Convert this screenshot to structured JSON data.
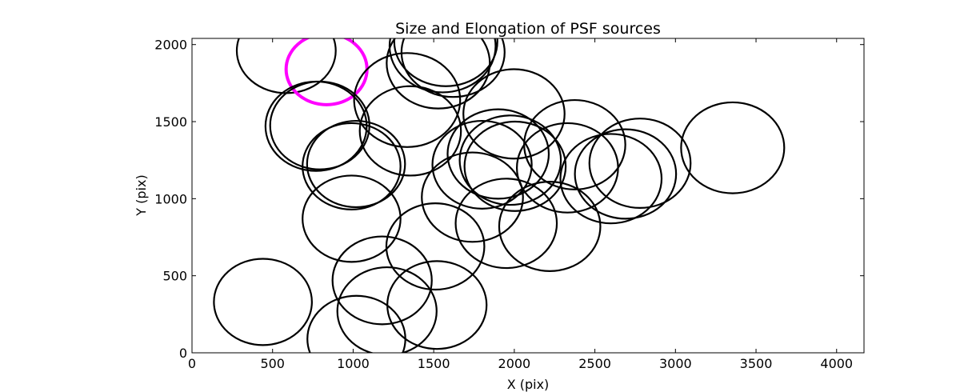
{
  "chart_data": {
    "type": "scatter",
    "title": "Size and Elongation of PSF sources",
    "xlabel": "X (pix)",
    "ylabel": "Y (pix)",
    "xlim": [
      0,
      4170
    ],
    "ylim": [
      0,
      2040
    ],
    "xticks": [
      0,
      500,
      1000,
      1500,
      2000,
      2500,
      3000,
      3500,
      4000
    ],
    "yticks": [
      0,
      500,
      1000,
      1500,
      2000
    ],
    "colors": {
      "normal": "#000000",
      "highlight": "#ff00ff"
    },
    "sources": [
      {
        "x": 585,
        "y": 1960,
        "rx": 307,
        "ry": 275,
        "highlight": false
      },
      {
        "x": 835,
        "y": 1840,
        "rx": 251,
        "ry": 230,
        "highlight": true
      },
      {
        "x": 1335,
        "y": 1640,
        "rx": 329,
        "ry": 305,
        "highlight": false
      },
      {
        "x": 1555,
        "y": 1990,
        "rx": 329,
        "ry": 300,
        "highlight": false
      },
      {
        "x": 1528,
        "y": 1880,
        "rx": 320,
        "ry": 295,
        "highlight": false
      },
      {
        "x": 1620,
        "y": 1950,
        "rx": 320,
        "ry": 290,
        "highlight": false
      },
      {
        "x": 1575,
        "y": 2020,
        "rx": 320,
        "ry": 290,
        "highlight": false
      },
      {
        "x": 770,
        "y": 1470,
        "rx": 314,
        "ry": 290,
        "highlight": false
      },
      {
        "x": 793,
        "y": 1475,
        "rx": 308,
        "ry": 285,
        "highlight": false
      },
      {
        "x": 1355,
        "y": 1440,
        "rx": 314,
        "ry": 290,
        "highlight": false
      },
      {
        "x": 1998,
        "y": 1550,
        "rx": 314,
        "ry": 290,
        "highlight": false
      },
      {
        "x": 990,
        "y": 1210,
        "rx": 304,
        "ry": 280,
        "highlight": false
      },
      {
        "x": 1018,
        "y": 1225,
        "rx": 304,
        "ry": 280,
        "highlight": false
      },
      {
        "x": 1800,
        "y": 1220,
        "rx": 308,
        "ry": 285,
        "highlight": false
      },
      {
        "x": 1900,
        "y": 1290,
        "rx": 314,
        "ry": 290,
        "highlight": false
      },
      {
        "x": 1975,
        "y": 1250,
        "rx": 314,
        "ry": 290,
        "highlight": false
      },
      {
        "x": 2005,
        "y": 1210,
        "rx": 314,
        "ry": 290,
        "highlight": false
      },
      {
        "x": 2375,
        "y": 1350,
        "rx": 314,
        "ry": 290,
        "highlight": false
      },
      {
        "x": 2330,
        "y": 1200,
        "rx": 314,
        "ry": 290,
        "highlight": false
      },
      {
        "x": 2600,
        "y": 1130,
        "rx": 314,
        "ry": 290,
        "highlight": false
      },
      {
        "x": 2690,
        "y": 1160,
        "rx": 314,
        "ry": 290,
        "highlight": false
      },
      {
        "x": 2780,
        "y": 1230,
        "rx": 314,
        "ry": 290,
        "highlight": false
      },
      {
        "x": 3355,
        "y": 1330,
        "rx": 320,
        "ry": 295,
        "highlight": false
      },
      {
        "x": 1740,
        "y": 1010,
        "rx": 314,
        "ry": 290,
        "highlight": false
      },
      {
        "x": 1950,
        "y": 840,
        "rx": 314,
        "ry": 290,
        "highlight": false
      },
      {
        "x": 2220,
        "y": 820,
        "rx": 314,
        "ry": 290,
        "highlight": false
      },
      {
        "x": 990,
        "y": 870,
        "rx": 304,
        "ry": 280,
        "highlight": false
      },
      {
        "x": 1510,
        "y": 690,
        "rx": 304,
        "ry": 280,
        "highlight": false
      },
      {
        "x": 1180,
        "y": 470,
        "rx": 308,
        "ry": 285,
        "highlight": false
      },
      {
        "x": 1210,
        "y": 270,
        "rx": 308,
        "ry": 285,
        "highlight": false
      },
      {
        "x": 1520,
        "y": 310,
        "rx": 308,
        "ry": 285,
        "highlight": false
      },
      {
        "x": 1020,
        "y": 90,
        "rx": 304,
        "ry": 280,
        "highlight": false
      },
      {
        "x": 440,
        "y": 330,
        "rx": 304,
        "ry": 280,
        "highlight": false
      }
    ]
  }
}
